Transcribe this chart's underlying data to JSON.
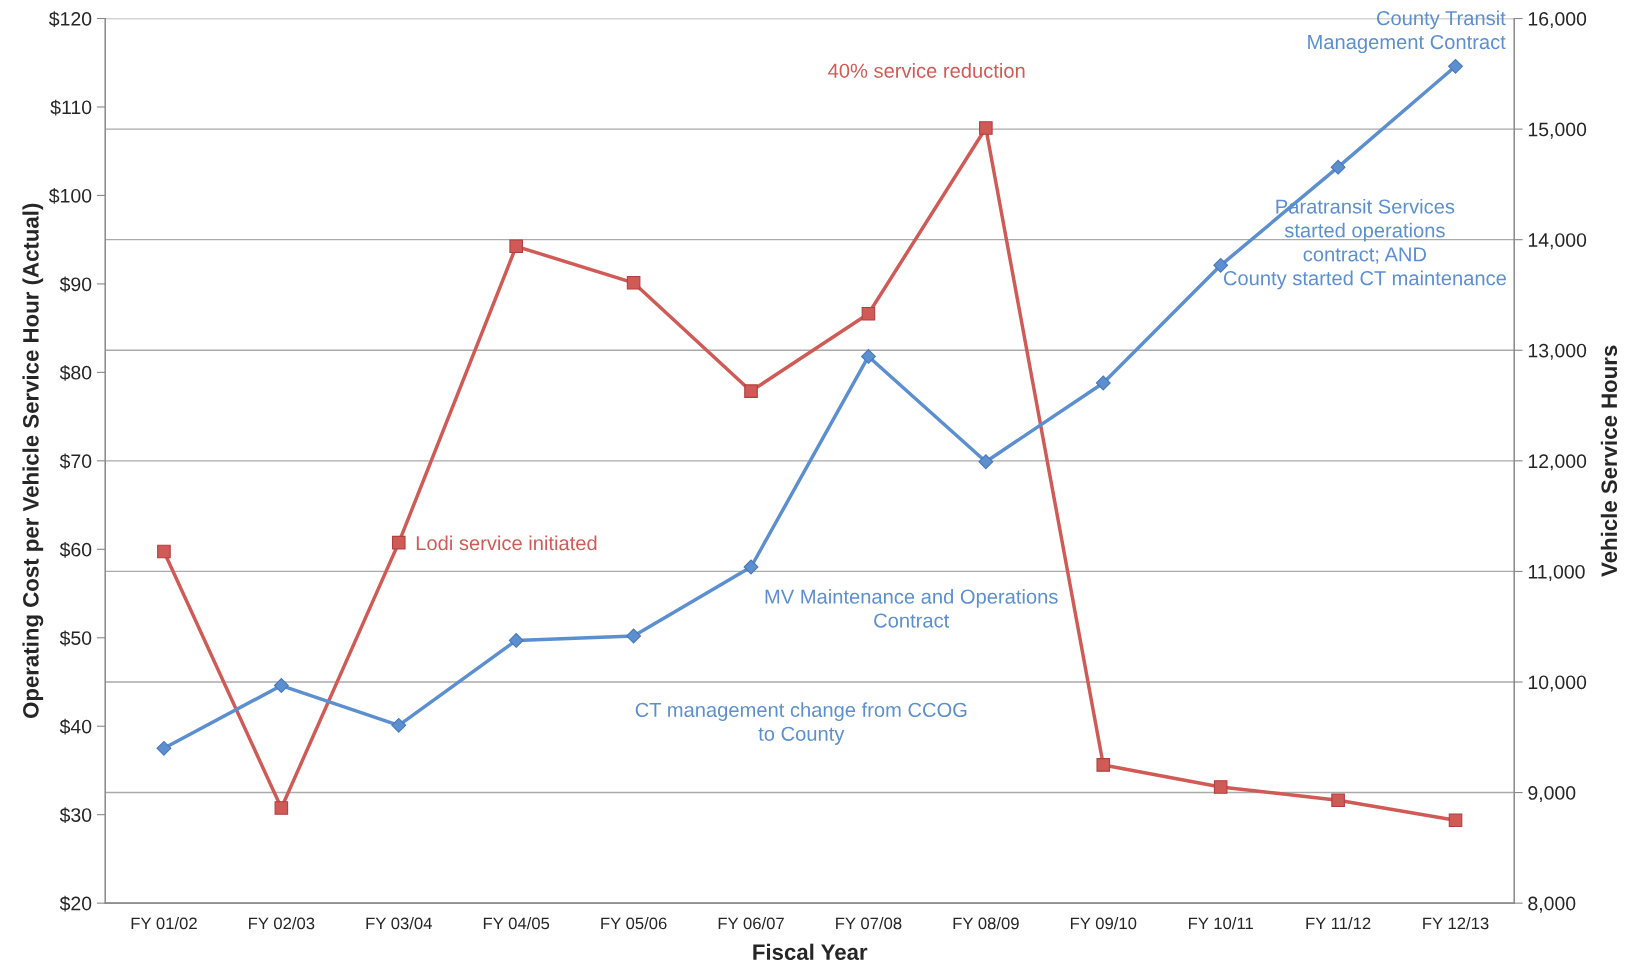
{
  "chart_data": {
    "type": "line",
    "xlabel": "Fiscal Year",
    "ylabel": "Operating Cost per Vehicle Service Hour (Actual)",
    "y2label": "Vehicle Service Hours",
    "categories": [
      "FY 01/02",
      "FY 02/03",
      "FY 03/04",
      "FY 04/05",
      "FY 05/06",
      "FY 06/07",
      "FY 07/08",
      "FY 08/09",
      "FY 09/10",
      "FY 10/11",
      "FY 11/12",
      "FY 12/13"
    ],
    "series": [
      {
        "color": "#5b8fcf",
        "marker": "diamond",
        "values": [
          37.5,
          44.6,
          40.1,
          49.7,
          50.2,
          58.0,
          81.8,
          69.9,
          78.8,
          92.1,
          103.2,
          114.6
        ]
      },
      {
        "color": "#d05a55",
        "marker": "square",
        "axis": "y2",
        "values": [
          11180,
          8860,
          11260,
          13940,
          13610,
          12630,
          13330,
          15010,
          9250,
          9050,
          8930,
          8750
        ]
      }
    ],
    "ylim": [
      20,
      120
    ],
    "yticks": [
      {
        "value": 20,
        "label": "$20"
      },
      {
        "value": 30,
        "label": "$30"
      },
      {
        "value": 40,
        "label": "$40"
      },
      {
        "value": 50,
        "label": "$50"
      },
      {
        "value": 60,
        "label": "$60"
      },
      {
        "value": 70,
        "label": "$70"
      },
      {
        "value": 80,
        "label": "$80"
      },
      {
        "value": 90,
        "label": "$90"
      },
      {
        "value": 100,
        "label": "$100"
      },
      {
        "value": 110,
        "label": "$110"
      },
      {
        "value": 120,
        "label": "$120"
      }
    ],
    "y2lim": [
      8000,
      16000
    ],
    "y2ticks": [
      {
        "value": 8000,
        "label": "8,000"
      },
      {
        "value": 9000,
        "label": "9,000"
      },
      {
        "value": 10000,
        "label": "10,000"
      },
      {
        "value": 11000,
        "label": "11,000"
      },
      {
        "value": 12000,
        "label": "12,000"
      },
      {
        "value": 13000,
        "label": "13,000"
      },
      {
        "value": 14000,
        "label": "14,000"
      },
      {
        "value": 15000,
        "label": "15,000"
      },
      {
        "value": 16000,
        "label": "16,000"
      }
    ],
    "grid": "y",
    "annotations": [
      "County Transit\nManagement Contract",
      "40% service reduction",
      "Paratransit Services\nstarted operations\ncontract; AND\nCounty started CT maintenance",
      "Lodi service initiated",
      "MV Maintenance and Operations\nContract",
      "CT management change from CCOG\nto County"
    ]
  }
}
